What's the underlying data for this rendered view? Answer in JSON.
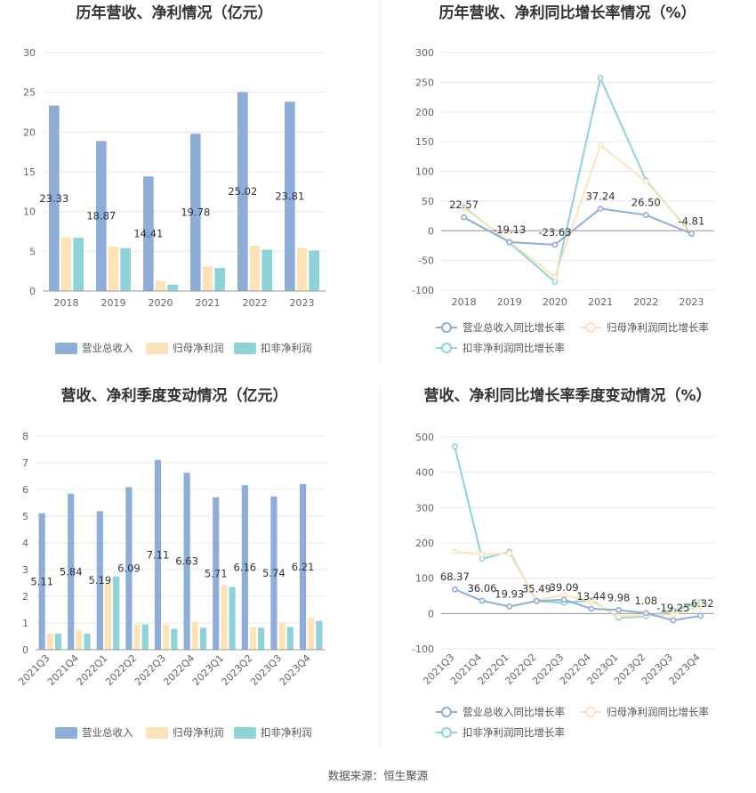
{
  "source": "数据来源：恒生聚源",
  "chart_data": [
    {
      "type": "bar",
      "title": "历年营收、净利情况（亿元）",
      "categories": [
        "2018",
        "2019",
        "2020",
        "2021",
        "2022",
        "2023"
      ],
      "ylim": [
        0,
        30
      ],
      "yticks": [
        0,
        5,
        10,
        15,
        20,
        25,
        30
      ],
      "legend_position": "bottom",
      "series": [
        {
          "name": "营业总收入",
          "color": "#8eadd9",
          "values": [
            23.33,
            18.87,
            14.41,
            19.78,
            25.02,
            23.81
          ],
          "labels": [
            "23.33",
            "18.87",
            "14.41",
            "19.78",
            "25.02",
            "23.81"
          ]
        },
        {
          "name": "归母净利润",
          "color": "#fde4b8",
          "values": [
            6.8,
            5.6,
            1.3,
            3.1,
            5.7,
            5.4
          ]
        },
        {
          "name": "扣非净利润",
          "color": "#8dd3d8",
          "values": [
            6.7,
            5.4,
            0.8,
            2.9,
            5.2,
            5.1
          ]
        }
      ]
    },
    {
      "type": "line",
      "title": "历年营收、净利同比增长率情况（%）",
      "categories": [
        "2018",
        "2019",
        "2020",
        "2021",
        "2022",
        "2023"
      ],
      "ylim": [
        -100,
        300
      ],
      "yticks": [
        -100,
        -50,
        0,
        50,
        100,
        150,
        200,
        250,
        300
      ],
      "legend_position": "bottom",
      "series": [
        {
          "name": "营业总收入同比增长率",
          "color": "#8eadd9",
          "values": [
            22.57,
            -19.13,
            -23.63,
            37.24,
            26.5,
            -4.81
          ],
          "labels": [
            "22.57",
            "-19.13",
            "-23.63",
            "37.24",
            "26.50",
            "-4.81"
          ]
        },
        {
          "name": "归母净利润同比增长率",
          "color": "#fde4b8",
          "values": [
            38,
            -18,
            -78,
            144,
            83,
            -3
          ]
        },
        {
          "name": "扣非净利润同比增长率",
          "color": "#8dd3d8",
          "values": [
            40,
            -20,
            -86,
            257,
            85,
            -5
          ]
        }
      ]
    },
    {
      "type": "bar",
      "title": "营收、净利季度变动情况（亿元）",
      "categories": [
        "2021Q3",
        "2021Q4",
        "2022Q1",
        "2022Q2",
        "2022Q3",
        "2022Q4",
        "2023Q1",
        "2023Q2",
        "2023Q3",
        "2023Q4"
      ],
      "ylim": [
        0,
        8
      ],
      "yticks": [
        0,
        1,
        2,
        3,
        4,
        5,
        6,
        7,
        8
      ],
      "legend_position": "bottom",
      "series": [
        {
          "name": "营业总收入",
          "color": "#8eadd9",
          "values": [
            5.11,
            5.84,
            5.19,
            6.09,
            7.11,
            6.63,
            5.71,
            6.16,
            5.74,
            6.21
          ],
          "labels": [
            "5.11",
            "5.84",
            "5.19",
            "6.09",
            "7.11",
            "6.63",
            "5.71",
            "6.16",
            "5.74",
            "6.21"
          ]
        },
        {
          "name": "归母净利润",
          "color": "#fde4b8",
          "values": [
            0.6,
            0.75,
            2.5,
            0.95,
            0.95,
            1.05,
            2.4,
            0.85,
            1.0,
            1.2
          ]
        },
        {
          "name": "扣非净利润",
          "color": "#8dd3d8",
          "values": [
            0.6,
            0.6,
            2.75,
            0.95,
            0.78,
            0.82,
            2.35,
            0.82,
            0.85,
            1.08
          ]
        }
      ]
    },
    {
      "type": "line",
      "title": "营收、净利同比增长率季度变动情况（%）",
      "categories": [
        "2021Q3",
        "2021Q4",
        "2022Q1",
        "2022Q2",
        "2022Q3",
        "2022Q4",
        "2023Q1",
        "2023Q2",
        "2023Q3",
        "2023Q4"
      ],
      "ylim": [
        -100,
        500
      ],
      "yticks": [
        -100,
        0,
        100,
        200,
        300,
        400,
        500
      ],
      "legend_position": "bottom",
      "series": [
        {
          "name": "营业总收入同比增长率",
          "color": "#8eadd9",
          "values": [
            68.37,
            36.06,
            19.93,
            35.49,
            39.09,
            13.44,
            9.98,
            1.08,
            -19.25,
            -6.32
          ],
          "labels": [
            "68.37",
            "36.06",
            "19.93",
            "35.49",
            "39.09",
            "13.44",
            "9.98",
            "1.08",
            "-19.25",
            "-6.32"
          ]
        },
        {
          "name": "归母净利润同比增长率",
          "color": "#fde4b8",
          "values": [
            175,
            168,
            170,
            38,
            52,
            35,
            -8,
            -5,
            -3,
            22
          ]
        },
        {
          "name": "扣非净利润同比增长率",
          "color": "#8dd3d8",
          "values": [
            473,
            155,
            175,
            35,
            30,
            38,
            -12,
            -8,
            8,
            32
          ]
        }
      ]
    }
  ]
}
